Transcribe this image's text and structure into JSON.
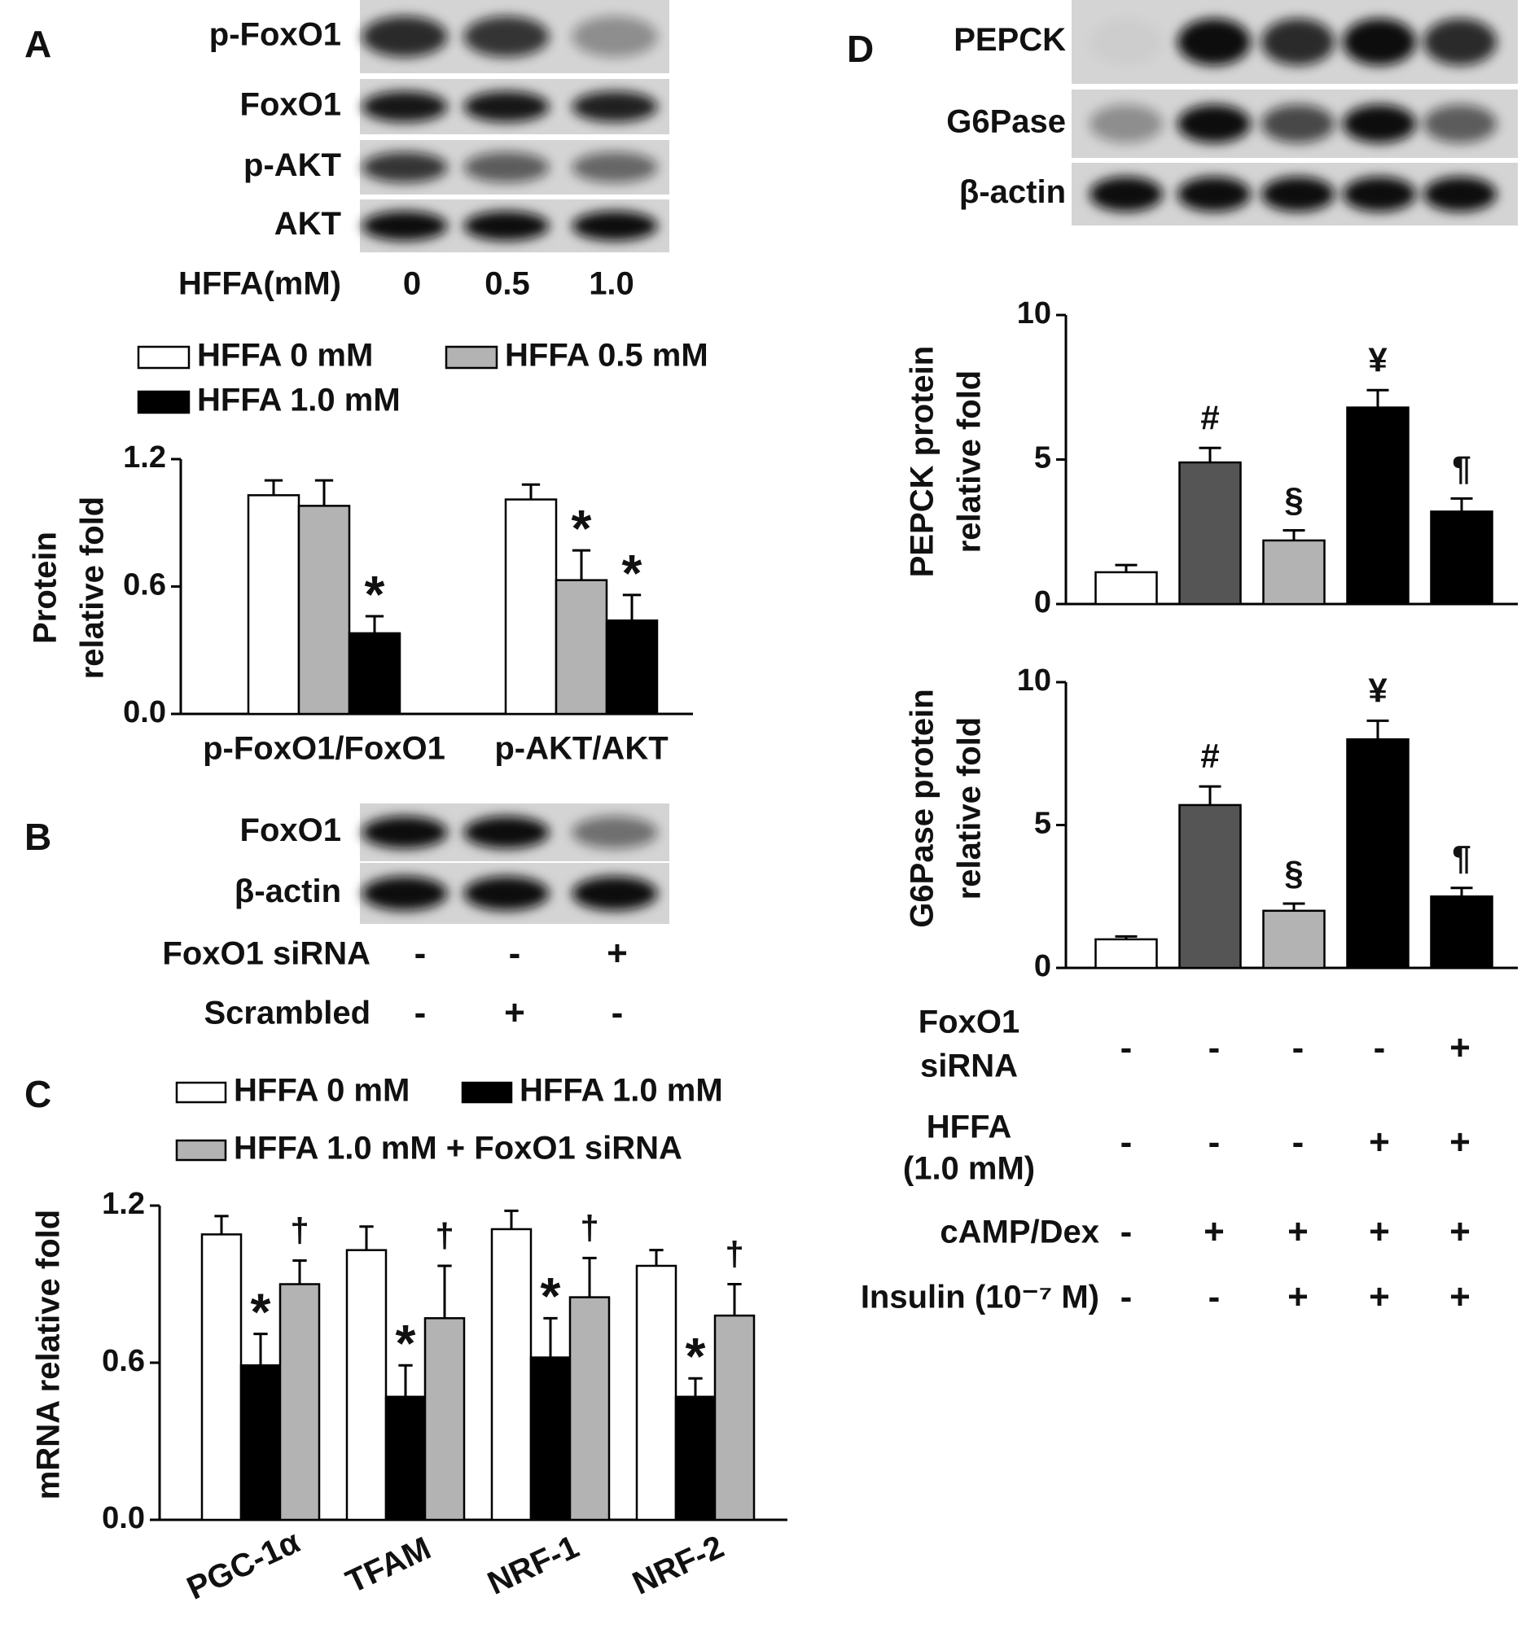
{
  "panels": [
    "A",
    "B",
    "C",
    "D"
  ],
  "blots": [
    {
      "rows": [
        "p-FoxO1",
        "FoxO1",
        "p-AKT",
        "AKT"
      ],
      "lane_header": "HFFA(mM)",
      "lanes": [
        "0",
        "0.5",
        "1.0"
      ]
    },
    {
      "rows": [
        "FoxO1",
        "β-actin"
      ],
      "conditions": [
        {
          "label": [
            "FoxO1  siRNA"
          ],
          "signs": [
            "-",
            "-",
            "+"
          ]
        },
        {
          "label": [
            "Scrambled"
          ],
          "signs": [
            "-",
            "+",
            "-"
          ]
        }
      ]
    },
    {
      "rows": [
        "PEPCK",
        "G6Pase",
        "β-actin"
      ],
      "conditions": [
        {
          "label": [
            "FoxO1",
            "siRNA"
          ],
          "signs": [
            "-",
            "-",
            "-",
            "-",
            "+"
          ]
        },
        {
          "label": [
            "HFFA",
            "(1.0 mM)"
          ],
          "signs": [
            "-",
            "-",
            "-",
            "+",
            "+"
          ]
        },
        {
          "label": [
            "cAMP/Dex"
          ],
          "signs": [
            "-",
            "+",
            "+",
            "+",
            "+"
          ]
        },
        {
          "label": [
            "Insulin  (10⁻⁷ M)"
          ],
          "signs": [
            "-",
            "-",
            "+",
            "+",
            "+"
          ]
        }
      ]
    }
  ],
  "chart_data": [
    {
      "type": "bar",
      "ylabel": [
        "Protein",
        "relative fold"
      ],
      "categories": [
        "p-FoxO1/FoxO1",
        "p-AKT/AKT"
      ],
      "series": [
        {
          "name": "HFFA  0 mM",
          "color": "#ffffff",
          "values": [
            1.03,
            1.01
          ],
          "errors": [
            0.07,
            0.07
          ],
          "markers": [
            null,
            null
          ]
        },
        {
          "name": "HFFA  0.5 mM",
          "color": "#b3b3b3",
          "values": [
            0.98,
            0.63
          ],
          "errors": [
            0.12,
            0.14
          ],
          "markers": [
            null,
            "*"
          ]
        },
        {
          "name": "HFFA  1.0 mM",
          "color": "#000000",
          "values": [
            0.38,
            0.44
          ],
          "errors": [
            0.08,
            0.12
          ],
          "markers": [
            "*",
            "*"
          ]
        }
      ],
      "ylim": [
        0,
        1.2
      ],
      "yticks": [
        {
          "value": 0,
          "label": "0.0"
        },
        0.6,
        1.2
      ]
    },
    {
      "type": "bar",
      "ylabel": [
        "mRNA relative fold"
      ],
      "categories": [
        "PGC-1α",
        "TFAM",
        "NRF-1",
        "NRF-2"
      ],
      "series": [
        {
          "name": "HFFA  0 mM",
          "color": "#ffffff",
          "values": [
            1.09,
            1.03,
            1.11,
            0.97
          ],
          "errors": [
            0.07,
            0.09,
            0.07,
            0.06
          ],
          "markers": [
            null,
            null,
            null,
            null
          ]
        },
        {
          "name": "HFFA  1.0 mM",
          "color": "#000000",
          "values": [
            0.59,
            0.47,
            0.62,
            0.47
          ],
          "errors": [
            0.12,
            0.12,
            0.15,
            0.07
          ],
          "markers": [
            "*",
            "*",
            "*",
            "*"
          ]
        },
        {
          "name": "HFFA  1.0 mM + FoxO1  siRNA",
          "color": "#b3b3b3",
          "values": [
            0.9,
            0.77,
            0.85,
            0.78
          ],
          "errors": [
            0.09,
            0.2,
            0.15,
            0.12
          ],
          "markers": [
            "†",
            "†",
            "†",
            "†"
          ]
        }
      ],
      "ylim": [
        0,
        1.2
      ],
      "yticks": [
        {
          "value": 0,
          "label": "0.0"
        },
        0.6,
        1.2
      ]
    },
    {
      "type": "bar",
      "ylabel": [
        "PEPCK  protein",
        "relative fold"
      ],
      "categories": [
        null,
        null,
        null,
        null,
        null
      ],
      "values": [
        1.1,
        4.9,
        2.2,
        6.8,
        3.2
      ],
      "errors": [
        0.25,
        0.5,
        0.35,
        0.6,
        0.45
      ],
      "colors": [
        "#ffffff",
        "#555555",
        "#b3b3b3",
        "#000000",
        "#000000"
      ],
      "markers": [
        null,
        "#",
        "§",
        "¥",
        "¶"
      ],
      "ylim": [
        0,
        10
      ],
      "yticks": [
        0,
        5,
        10
      ]
    },
    {
      "type": "bar",
      "ylabel": [
        "G6Pase  protein",
        "relative fold"
      ],
      "categories": [
        null,
        null,
        null,
        null,
        null
      ],
      "values": [
        1.0,
        5.7,
        2.0,
        8.0,
        2.5
      ],
      "errors": [
        0.1,
        0.65,
        0.25,
        0.65,
        0.3
      ],
      "colors": [
        "#ffffff",
        "#555555",
        "#b3b3b3",
        "#000000",
        "#000000"
      ],
      "markers": [
        null,
        "#",
        "§",
        "¥",
        "¶"
      ],
      "ylim": [
        0,
        10
      ],
      "yticks": [
        0,
        5,
        10
      ]
    }
  ]
}
